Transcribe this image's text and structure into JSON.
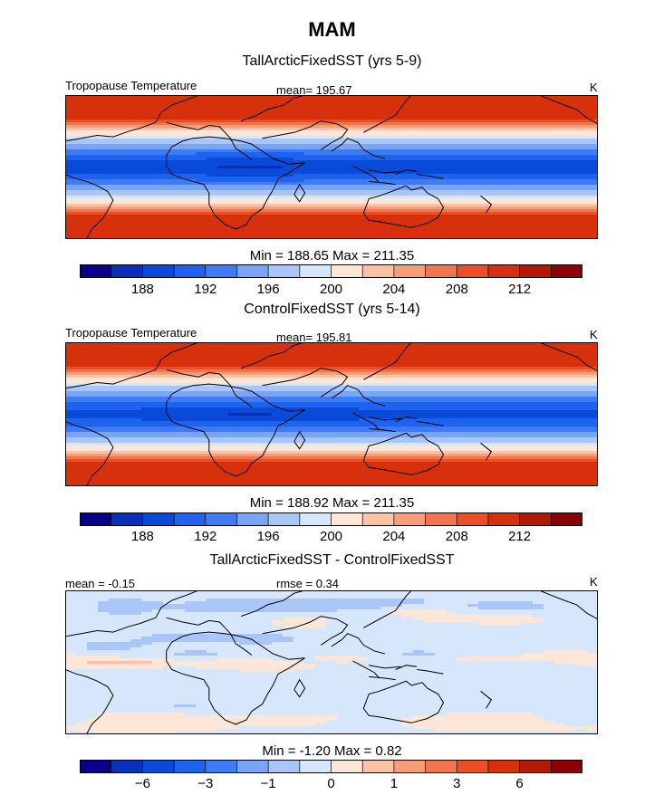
{
  "chart_data": {
    "type": "heatmap",
    "title": "MAM",
    "panels": [
      {
        "title": "TallArcticFixedSST (yrs 5-9)",
        "variable": "Tropopause Temperature",
        "stat_label": "mean=",
        "stat_value": "195.67",
        "units": "K",
        "min_max_text": "Min = 188.65 Max = 211.35",
        "field": "zonal",
        "equator_value": 189.3,
        "pole_value": 210.5
      },
      {
        "title": "ControlFixedSST (yrs 5-14)",
        "variable": "Tropopause Temperature",
        "stat_label": "mean=",
        "stat_value": "195.81",
        "units": "K",
        "min_max_text": "Min = 188.92 Max = 211.35",
        "field": "zonal",
        "equator_value": 189.5,
        "pole_value": 210.5
      },
      {
        "title": "TallArcticFixedSST - ControlFixedSST",
        "left_label": "mean = -0.15",
        "mid_label": "rmse = 0.34",
        "units": "K",
        "min_max_text": "Min = -1.20 Max = 0.82",
        "field": "difference"
      }
    ],
    "colorbars": [
      {
        "levels": [
          184,
          186,
          188,
          190,
          192,
          194,
          196,
          198,
          200,
          202,
          204,
          206,
          208,
          210,
          212,
          214,
          216
        ],
        "tick_labels": [
          "188",
          "192",
          "196",
          "200",
          "204",
          "208",
          "212"
        ]
      },
      {
        "levels": [
          184,
          186,
          188,
          190,
          192,
          194,
          196,
          198,
          200,
          202,
          204,
          206,
          208,
          210,
          212,
          214,
          216
        ],
        "tick_labels": [
          "188",
          "192",
          "196",
          "200",
          "204",
          "208",
          "212"
        ]
      },
      {
        "levels": [
          -8,
          -7,
          -6,
          -5,
          -3,
          -2,
          -1,
          -0.5,
          0,
          0.5,
          1,
          2,
          3,
          5,
          6,
          7,
          8
        ],
        "tick_labels": [
          "−6",
          "−3",
          "−1",
          "0",
          "1",
          "3",
          "6"
        ]
      }
    ],
    "colors": [
      "#08008a",
      "#0a2fb8",
      "#0a4ad8",
      "#1e63ef",
      "#3d7cf5",
      "#7aa5f7",
      "#aac6f8",
      "#d6e6fb",
      "#fce6d8",
      "#fbc3a6",
      "#f89c7a",
      "#f3754e",
      "#ed4f25",
      "#d7300c",
      "#b21906",
      "#8a0204"
    ]
  }
}
